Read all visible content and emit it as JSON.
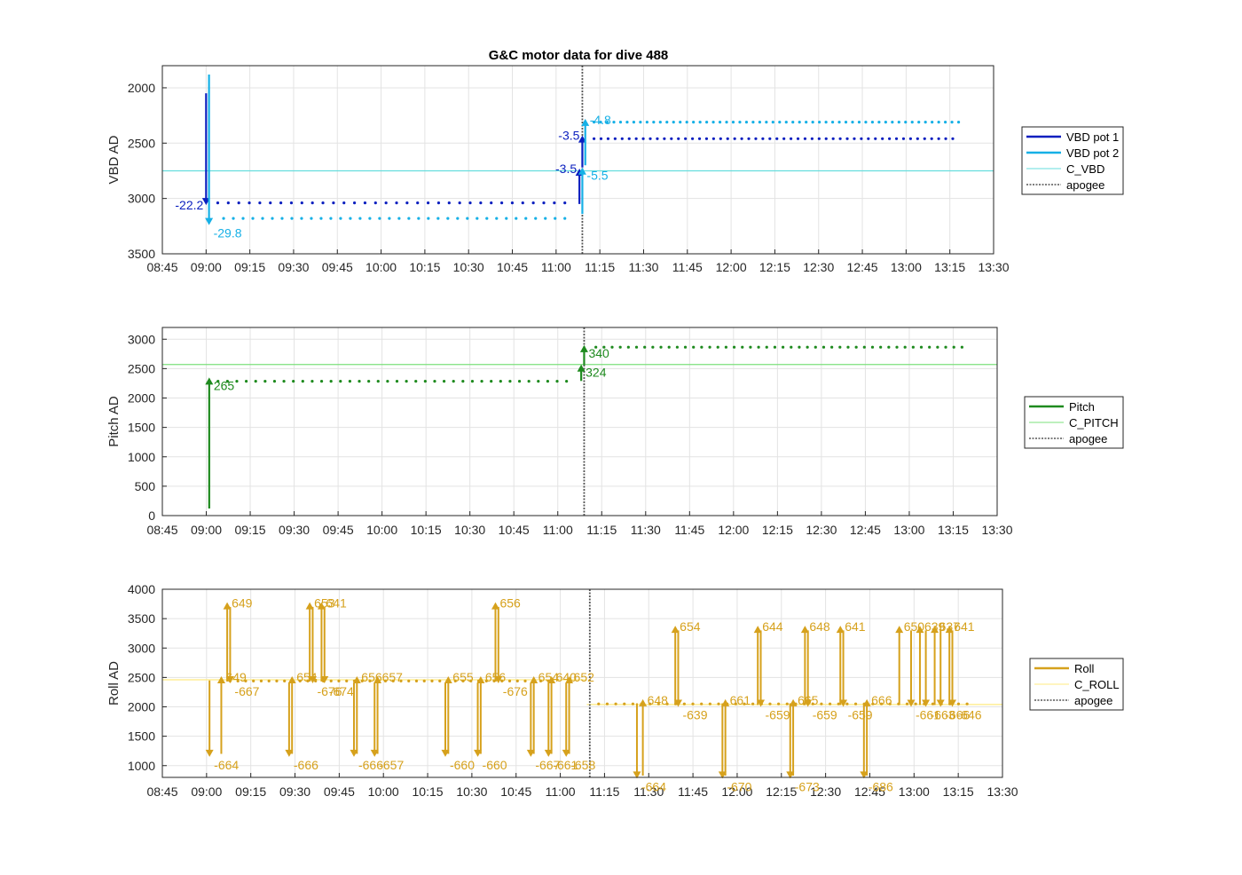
{
  "figure_title": "G&C motor data for dive 488",
  "colors": {
    "vbd1": "#0B1FBF",
    "vbd2": "#16B0E6",
    "c_vbd": "#66DDDD",
    "pitch": "#1E8A1E",
    "c_pitch": "#7BE07B",
    "roll": "#D6A11C",
    "c_roll": "#FFEB80",
    "apogee": "#555555"
  },
  "chart_data": [
    {
      "type": "line",
      "ylabel": "VBD AD",
      "xlabel": "",
      "x_ticks": [
        "08:45",
        "09:00",
        "09:15",
        "09:30",
        "09:45",
        "10:00",
        "10:15",
        "10:30",
        "10:45",
        "11:00",
        "11:15",
        "11:30",
        "11:45",
        "12:00",
        "12:15",
        "12:30",
        "12:45",
        "13:00",
        "13:15",
        "13:30"
      ],
      "x_range": [
        "08:45",
        "13:30"
      ],
      "y_ticks": [
        2000,
        2500,
        3000,
        3500
      ],
      "ylim": [
        1800,
        3500
      ],
      "y_reversed": true,
      "grid": true,
      "legend_position": "right",
      "legend": [
        "VBD pot 1",
        "VBD pot 2",
        "C_VBD",
        "apogee"
      ],
      "apogee_time": "11:09",
      "reference_lines": [
        {
          "name": "C_VBD",
          "y": 2750
        }
      ],
      "series": [
        {
          "name": "VBD pot 1",
          "color_key": "vbd1",
          "x_start": "09:04",
          "x_end": "11:03",
          "y": 3040,
          "dots": 34
        },
        {
          "name": "VBD pot 1",
          "color_key": "vbd1",
          "x_start": "11:13",
          "x_end": "13:16",
          "y": 2460,
          "dots": 52
        },
        {
          "name": "VBD pot 2",
          "color_key": "vbd2",
          "x_start": "09:06",
          "x_end": "11:03",
          "y": 3180,
          "dots": 36
        },
        {
          "name": "VBD pot 2",
          "color_key": "vbd2",
          "x_start": "11:13",
          "x_end": "13:18",
          "y": 2310,
          "dots": 56
        }
      ],
      "arrows": [
        {
          "series": "VBD pot 1",
          "x": "09:00",
          "y_from": 2050,
          "y_to": 3060,
          "label": "-22.2",
          "label_side": "left"
        },
        {
          "series": "VBD pot 2",
          "x": "09:01",
          "y_from": 1880,
          "y_to": 3240,
          "label": "-29.8",
          "label_side": "right-below"
        },
        {
          "series": "VBD pot 1",
          "x": "11:08",
          "y_from": 3050,
          "y_to": 2730,
          "label": "-3.5",
          "label_side": "left"
        },
        {
          "series": "VBD pot 1",
          "x": "11:09",
          "y_from": 2720,
          "y_to": 2430,
          "label": "-3.5",
          "label_side": "left"
        },
        {
          "series": "VBD pot 2",
          "x": "11:09",
          "y_from": 3140,
          "y_to": 2720,
          "label": "-5.5",
          "label_side": "right-below"
        },
        {
          "series": "VBD pot 2",
          "x": "11:10",
          "y_from": 2700,
          "y_to": 2280,
          "label": "-4.8",
          "label_side": "right"
        }
      ]
    },
    {
      "type": "line",
      "ylabel": "Pitch AD",
      "xlabel": "",
      "x_ticks": [
        "08:45",
        "09:00",
        "09:15",
        "09:30",
        "09:45",
        "10:00",
        "10:15",
        "10:30",
        "10:45",
        "11:00",
        "11:15",
        "11:30",
        "11:45",
        "12:00",
        "12:15",
        "12:30",
        "12:45",
        "13:00",
        "13:15",
        "13:30"
      ],
      "x_range": [
        "08:45",
        "13:30"
      ],
      "y_ticks": [
        0,
        500,
        1000,
        1500,
        2000,
        2500,
        3000
      ],
      "ylim": [
        0,
        3200
      ],
      "grid": true,
      "legend_position": "right",
      "legend": [
        "Pitch",
        "C_PITCH",
        "apogee"
      ],
      "apogee_time": "11:09",
      "reference_lines": [
        {
          "name": "C_PITCH",
          "y": 2570
        }
      ],
      "series": [
        {
          "name": "Pitch",
          "color_key": "pitch",
          "x_start": "09:04",
          "x_end": "11:03",
          "y": 2285,
          "dots": 38
        },
        {
          "name": "Pitch",
          "color_key": "pitch",
          "x_start": "11:13",
          "x_end": "13:18",
          "y": 2865,
          "dots": 46
        }
      ],
      "arrows": [
        {
          "series": "Pitch",
          "x": "09:01",
          "y_from": 120,
          "y_to": 2350,
          "label": "265",
          "label_side": "right-below"
        },
        {
          "series": "Pitch",
          "x": "11:08",
          "y_from": 2290,
          "y_to": 2570,
          "label": "324",
          "label_side": "right-below"
        },
        {
          "series": "Pitch",
          "x": "11:09",
          "y_from": 2560,
          "y_to": 2900,
          "label": "340",
          "label_side": "right-below"
        }
      ]
    },
    {
      "type": "line",
      "ylabel": "Roll AD",
      "xlabel": "",
      "x_ticks": [
        "08:45",
        "09:00",
        "09:15",
        "09:30",
        "09:45",
        "10:00",
        "10:15",
        "10:30",
        "10:45",
        "11:00",
        "11:15",
        "11:30",
        "11:45",
        "12:00",
        "12:15",
        "12:30",
        "12:45",
        "13:00",
        "13:15",
        "13:30"
      ],
      "x_range": [
        "08:45",
        "13:30"
      ],
      "y_ticks": [
        1000,
        1500,
        2000,
        2500,
        3000,
        3500,
        4000
      ],
      "ylim": [
        800,
        4000
      ],
      "grid": true,
      "legend_position": "right",
      "legend": [
        "Roll",
        "C_ROLL",
        "apogee"
      ],
      "apogee_time": "11:10",
      "reference_lines": [
        {
          "name": "C_ROLL",
          "x_start": "08:45",
          "x_end": "11:09",
          "y": 2460
        },
        {
          "name": "C_ROLL",
          "x_start": "11:09",
          "x_end": "13:30",
          "y": 2040
        }
      ],
      "series": [
        {
          "name": "Roll",
          "color_key": "roll",
          "x_start": "09:08",
          "x_end": "10:56",
          "y": 2440,
          "dots": 42
        },
        {
          "name": "Roll",
          "color_key": "roll",
          "x_start": "11:13",
          "x_end": "13:18",
          "y": 2050,
          "dots": 44
        }
      ],
      "arrows": [
        {
          "x": "09:01",
          "y_from": 2450,
          "y_to": 1150,
          "label": "-664",
          "label_side": "right-below"
        },
        {
          "x": "09:05",
          "y_from": 1200,
          "y_to": 2520,
          "label": "649",
          "label_side": "right"
        },
        {
          "x": "09:07",
          "y_from": 2430,
          "y_to": 3780,
          "label": "649",
          "label_side": "right"
        },
        {
          "x": "09:08",
          "y_from": 3700,
          "y_to": 2400,
          "label": "-667",
          "label_side": "right-below"
        },
        {
          "x": "09:28",
          "y_from": 2400,
          "y_to": 1150,
          "label": "-666",
          "label_side": "right-below"
        },
        {
          "x": "09:29",
          "y_from": 1200,
          "y_to": 2520,
          "label": "654",
          "label_side": "right"
        },
        {
          "x": "09:35",
          "y_from": 2430,
          "y_to": 3780,
          "label": "653",
          "label_side": "right"
        },
        {
          "x": "09:36",
          "y_from": 3700,
          "y_to": 2400,
          "label": "-676",
          "label_side": "right-below"
        },
        {
          "x": "09:39",
          "y_from": 2430,
          "y_to": 3780,
          "label": "641",
          "label_side": "right"
        },
        {
          "x": "09:40",
          "y_from": 3700,
          "y_to": 2400,
          "label": "-674",
          "label_side": "right-below"
        },
        {
          "x": "09:50",
          "y_from": 2400,
          "y_to": 1150,
          "label": "-666",
          "label_side": "right-below"
        },
        {
          "x": "09:51",
          "y_from": 1200,
          "y_to": 2520,
          "label": "656",
          "label_side": "right"
        },
        {
          "x": "09:57",
          "y_from": 2400,
          "y_to": 1150,
          "label": "-657",
          "label_side": "right-below"
        },
        {
          "x": "09:58",
          "y_from": 1200,
          "y_to": 2520,
          "label": "657",
          "label_side": "right"
        },
        {
          "x": "10:21",
          "y_from": 2400,
          "y_to": 1150,
          "label": "-660",
          "label_side": "right-below"
        },
        {
          "x": "10:22",
          "y_from": 1200,
          "y_to": 2520,
          "label": "655",
          "label_side": "right"
        },
        {
          "x": "10:32",
          "y_from": 2400,
          "y_to": 1150,
          "label": "-660",
          "label_side": "right-below"
        },
        {
          "x": "10:33",
          "y_from": 1200,
          "y_to": 2520,
          "label": "656",
          "label_side": "right"
        },
        {
          "x": "10:38",
          "y_from": 2430,
          "y_to": 3780,
          "label": "656",
          "label_side": "right"
        },
        {
          "x": "10:39",
          "y_from": 3700,
          "y_to": 2400,
          "label": "-676",
          "label_side": "right-below"
        },
        {
          "x": "10:50",
          "y_from": 2400,
          "y_to": 1150,
          "label": "-667",
          "label_side": "right-below"
        },
        {
          "x": "10:51",
          "y_from": 1200,
          "y_to": 2520,
          "label": "654",
          "label_side": "right"
        },
        {
          "x": "10:56",
          "y_from": 2400,
          "y_to": 1150,
          "label": "-661",
          "label_side": "right-below"
        },
        {
          "x": "10:57",
          "y_from": 1200,
          "y_to": 2520,
          "label": "640",
          "label_side": "right"
        },
        {
          "x": "11:02",
          "y_from": 2400,
          "y_to": 1150,
          "label": "-658",
          "label_side": "right-below"
        },
        {
          "x": "11:03",
          "y_from": 1200,
          "y_to": 2520,
          "label": "652",
          "label_side": "right"
        },
        {
          "x": "11:26",
          "y_from": 2060,
          "y_to": 780,
          "label": "-664",
          "label_side": "right-below"
        },
        {
          "x": "11:28",
          "y_from": 830,
          "y_to": 2130,
          "label": "648",
          "label_side": "right"
        },
        {
          "x": "11:39",
          "y_from": 2030,
          "y_to": 3380,
          "label": "654",
          "label_side": "right"
        },
        {
          "x": "11:40",
          "y_from": 3300,
          "y_to": 2000,
          "label": "-639",
          "label_side": "right-below"
        },
        {
          "x": "11:55",
          "y_from": 2060,
          "y_to": 780,
          "label": "-670",
          "label_side": "right-below"
        },
        {
          "x": "11:56",
          "y_from": 830,
          "y_to": 2130,
          "label": "661",
          "label_side": "right"
        },
        {
          "x": "12:07",
          "y_from": 2030,
          "y_to": 3380,
          "label": "644",
          "label_side": "right"
        },
        {
          "x": "12:08",
          "y_from": 3300,
          "y_to": 2000,
          "label": "-659",
          "label_side": "right-below"
        },
        {
          "x": "12:18",
          "y_from": 2060,
          "y_to": 780,
          "label": "-673",
          "label_side": "right-below"
        },
        {
          "x": "12:19",
          "y_from": 830,
          "y_to": 2130,
          "label": "665",
          "label_side": "right"
        },
        {
          "x": "12:23",
          "y_from": 2030,
          "y_to": 3380,
          "label": "648",
          "label_side": "right"
        },
        {
          "x": "12:24",
          "y_from": 3300,
          "y_to": 2000,
          "label": "-659",
          "label_side": "right-below"
        },
        {
          "x": "12:35",
          "y_from": 2030,
          "y_to": 3380,
          "label": "641",
          "label_side": "right"
        },
        {
          "x": "12:36",
          "y_from": 3300,
          "y_to": 2000,
          "label": "-659",
          "label_side": "right-below"
        },
        {
          "x": "12:43",
          "y_from": 2060,
          "y_to": 780,
          "label": "-686",
          "label_side": "right-below"
        },
        {
          "x": "12:44",
          "y_from": 830,
          "y_to": 2130,
          "label": "666",
          "label_side": "right"
        },
        {
          "x": "12:55",
          "y_from": 2030,
          "y_to": 3380,
          "label": "650",
          "label_side": "right"
        },
        {
          "x": "12:59",
          "y_from": 3300,
          "y_to": 2000,
          "label": "-661",
          "label_side": "right-below"
        },
        {
          "x": "13:02",
          "y_from": 2030,
          "y_to": 3380,
          "label": "639",
          "label_side": "right"
        },
        {
          "x": "13:04",
          "y_from": 3300,
          "y_to": 2000,
          "label": "-663",
          "label_side": "right-below"
        },
        {
          "x": "13:07",
          "y_from": 2030,
          "y_to": 3380,
          "label": "637",
          "label_side": "right"
        },
        {
          "x": "13:09",
          "y_from": 3300,
          "y_to": 2000,
          "label": "-666",
          "label_side": "right-below"
        },
        {
          "x": "13:12",
          "y_from": 2030,
          "y_to": 3380,
          "label": "641",
          "label_side": "right"
        },
        {
          "x": "13:13",
          "y_from": 3300,
          "y_to": 2000,
          "label": "-646",
          "label_side": "right-below"
        }
      ]
    }
  ]
}
